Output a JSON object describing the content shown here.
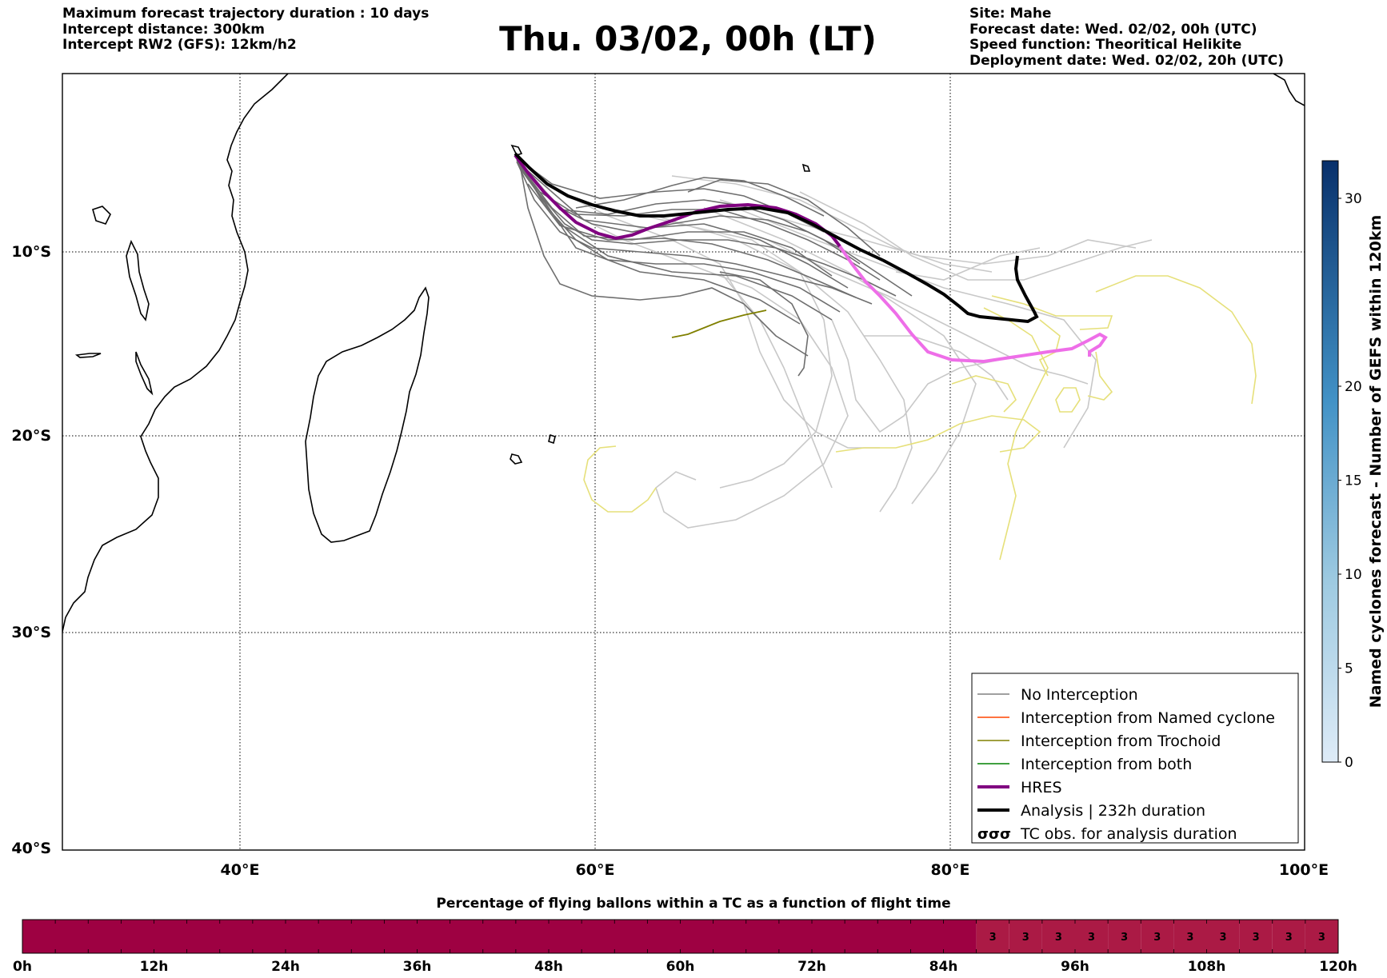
{
  "header": {
    "left": [
      "Maximum forecast trajectory duration : 10 days",
      "Intercept distance: 300km",
      "Intercept RW2 (GFS):  12km/h2"
    ],
    "title": "Thu. 03/02, 00h (LT)",
    "right": [
      "Site: Mahe",
      "Forecast date: Wed. 02/02, 00h (UTC)",
      "Speed function: Theoritical Helikite",
      "Deployment date: Wed. 02/02, 20h (UTC)"
    ]
  },
  "map": {
    "lon_range": [
      30,
      100
    ],
    "lat_range": [
      -40,
      -0.5
    ],
    "lon_ticks": [
      "40°E",
      "60°E",
      "80°E",
      "100°E"
    ],
    "lat_ticks": [
      "10°S",
      "20°S",
      "30°S",
      "40°S"
    ],
    "grid": "dotted"
  },
  "legend": {
    "position": "bottom-right",
    "items": [
      {
        "label": "No Interception",
        "color": "#808080",
        "style": "thin"
      },
      {
        "label": "Interception from Named cyclone",
        "color": "#ff4500",
        "style": "thin"
      },
      {
        "label": "Interception from Trochoid",
        "color": "#808000",
        "style": "thin"
      },
      {
        "label": "Interception from both",
        "color": "#008000",
        "style": "thin"
      },
      {
        "label": "HRES",
        "color": "#800080",
        "style": "thick"
      },
      {
        "label": "Analysis | 232h duration",
        "color": "#000000",
        "style": "thick"
      },
      {
        "label": "TC obs. for analysis duration",
        "color": "#000000",
        "style": "symbol",
        "symbol": "σσσ"
      }
    ]
  },
  "colorbar": {
    "label": "Named cyclones forecast - Number of GEFS within 120km",
    "ticks": [
      "0",
      "5",
      "10",
      "15",
      "20",
      "30"
    ],
    "tick_values": [
      0,
      5,
      10,
      15,
      20,
      30
    ],
    "range": [
      0,
      32
    ],
    "color_low": "#deebf7",
    "color_high": "#08306b"
  },
  "flight_bar": {
    "title": "Percentage of flying ballons within a TC as a function of flight time",
    "ticks": [
      "0h",
      "12h",
      "24h",
      "36h",
      "48h",
      "60h",
      "72h",
      "84h",
      "96h",
      "108h",
      "120h"
    ],
    "hours_range": [
      0,
      120
    ],
    "base_color": "#9e0142",
    "tc_color": "#ab1a45",
    "tc_start_hour": 87,
    "cell_value": "3",
    "cell_count": 11
  },
  "colors": {
    "hres_early": "#800080",
    "hres_late": "#ee6ee8",
    "members_dark": "#6e6e6e",
    "members_light": "#c8c8c8",
    "members_yellow": "#e6e07a",
    "trochoid": "#808000",
    "analysis": "#000000"
  }
}
